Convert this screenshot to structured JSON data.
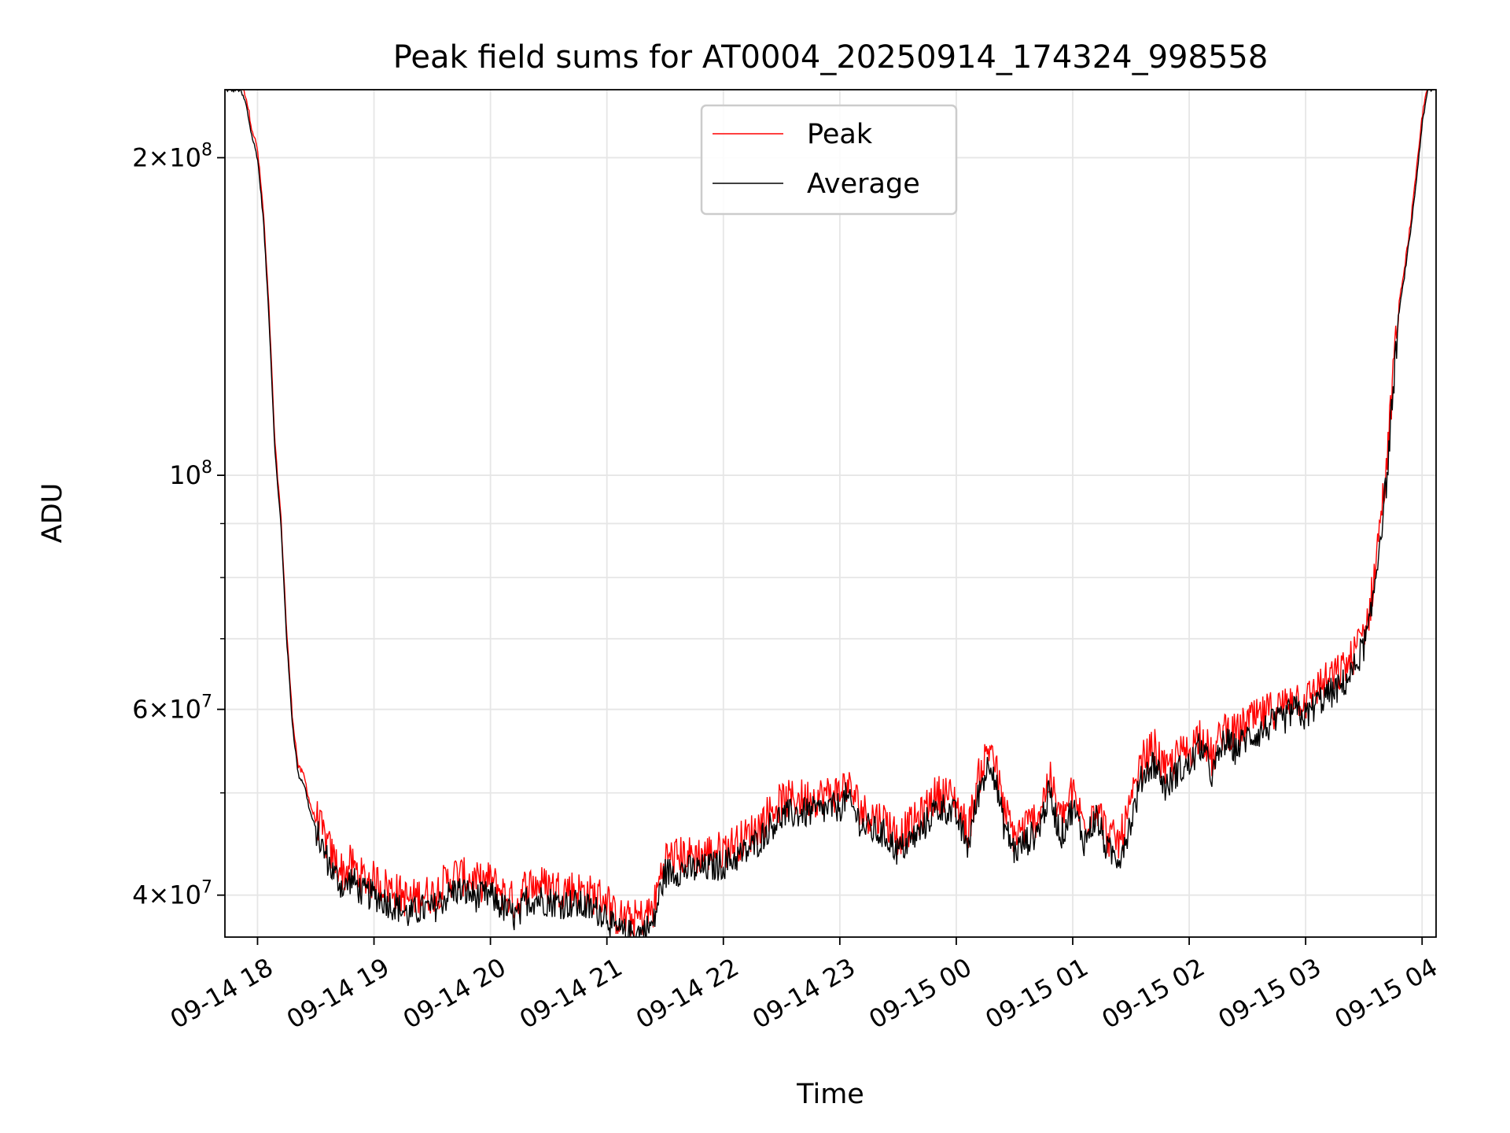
{
  "chart_data": {
    "type": "line",
    "title": "Peak field sums for AT0004_20250914_174324_998558",
    "xlabel": "Time",
    "ylabel": "ADU",
    "yscale": "log",
    "ylim": [
      36500000,
      232000000
    ],
    "xlim": [
      -0.28,
      10.12
    ],
    "grid": true,
    "legend_position": "top-center",
    "colors": {
      "peak": "#ff0000",
      "average": "#000000",
      "grid": "#e6e6e6",
      "frame": "#000000"
    },
    "x_ticks": [
      {
        "label": "09-14 18",
        "value": 0
      },
      {
        "label": "09-14 19",
        "value": 1
      },
      {
        "label": "09-14 20",
        "value": 2
      },
      {
        "label": "09-14 21",
        "value": 3
      },
      {
        "label": "09-14 22",
        "value": 4
      },
      {
        "label": "09-14 23",
        "value": 5
      },
      {
        "label": "09-15 00",
        "value": 6
      },
      {
        "label": "09-15 01",
        "value": 7
      },
      {
        "label": "09-15 02",
        "value": 8
      },
      {
        "label": "09-15 03",
        "value": 9
      },
      {
        "label": "09-15 04",
        "value": 10
      }
    ],
    "y_major_ticks": [
      {
        "value": 40000000,
        "mantissa": "4",
        "base": "10",
        "exp": "7"
      },
      {
        "value": 60000000,
        "mantissa": "6",
        "base": "10",
        "exp": "7"
      },
      {
        "value": 100000000,
        "mantissa": "",
        "base": "10",
        "exp": "8"
      },
      {
        "value": 200000000,
        "mantissa": "2",
        "base": "10",
        "exp": "8"
      }
    ],
    "y_minor_ticks": [
      50000000,
      70000000,
      80000000,
      90000000
    ],
    "x_hours_from": "09-14 18",
    "series": [
      {
        "name": "Average",
        "x": [
          -0.28,
          -0.15,
          -0.1,
          -0.05,
          0,
          0.05,
          0.1,
          0.15,
          0.2,
          0.25,
          0.3,
          0.35,
          0.4,
          0.45,
          0.55,
          0.65,
          0.75,
          0.8,
          0.9,
          1.0,
          1.1,
          1.2,
          1.3,
          1.4,
          1.5,
          1.6,
          1.7,
          1.8,
          1.9,
          2.0,
          2.1,
          2.2,
          2.25,
          2.3,
          2.35,
          2.4,
          2.5,
          2.6,
          2.7,
          2.8,
          2.9,
          3.0,
          3.05,
          3.1,
          3.2,
          3.3,
          3.4,
          3.45,
          3.5,
          3.6,
          3.8,
          4.0,
          4.2,
          4.3,
          4.4,
          4.5,
          4.6,
          4.8,
          5.0,
          5.05,
          5.2,
          5.4,
          5.5,
          5.6,
          5.7,
          5.8,
          5.9,
          6.0,
          6.1,
          6.2,
          6.3,
          6.4,
          6.5,
          6.6,
          6.7,
          6.8,
          6.9,
          7.0,
          7.1,
          7.2,
          7.3,
          7.4,
          7.5,
          7.6,
          7.7,
          7.8,
          7.9,
          8.0,
          8.1,
          8.2,
          8.3,
          8.4,
          8.5,
          8.6,
          8.7,
          8.8,
          8.9,
          9.0,
          9.1,
          9.2,
          9.3,
          9.4,
          9.5,
          9.55,
          9.6,
          9.7,
          9.75,
          9.8,
          9.85,
          9.9,
          9.95,
          10.0,
          10.05,
          10.1
        ],
        "values": [
          232000000,
          232000000,
          225000000,
          210000000,
          200000000,
          175000000,
          140000000,
          105000000,
          90000000,
          70000000,
          58000000,
          52000000,
          51000000,
          48000000,
          44500000,
          42000000,
          40500000,
          41500000,
          40200000,
          40000000,
          39500000,
          39000000,
          38300000,
          38800000,
          38800000,
          39700000,
          40500000,
          40200000,
          39800000,
          40000000,
          39000000,
          38200000,
          38100000,
          39600000,
          39600000,
          39700000,
          39500000,
          39300000,
          39300000,
          39000000,
          38700000,
          38500000,
          37200000,
          36900000,
          36700000,
          36900000,
          37500000,
          40000000,
          42000000,
          42200000,
          42300000,
          42800000,
          44000000,
          45000000,
          46500000,
          47500000,
          47800000,
          48000000,
          48500000,
          49500000,
          46500000,
          45500000,
          44000000,
          45000000,
          46000000,
          48000000,
          48500000,
          47500000,
          44500000,
          50500000,
          54000000,
          47000000,
          44000000,
          45000000,
          46000000,
          50000000,
          45500000,
          48500000,
          45000000,
          47500000,
          44000000,
          43500000,
          47000000,
          52000000,
          53500000,
          50500000,
          52500000,
          53000000,
          55500000,
          52000000,
          56000000,
          55000000,
          56500000,
          57000000,
          58000000,
          58500000,
          60000000,
          59000000,
          61000000,
          62000000,
          63000000,
          65000000,
          69000000,
          72000000,
          80000000,
          100000000,
          120000000,
          142000000,
          155000000,
          170000000,
          190000000,
          215000000,
          232000000,
          232000000
        ],
        "noise_amplitude": 0.035
      },
      {
        "name": "Peak",
        "same_x_as": "Average",
        "offset_ratio": 1.015,
        "noise_amplitude": 0.045
      }
    ]
  }
}
